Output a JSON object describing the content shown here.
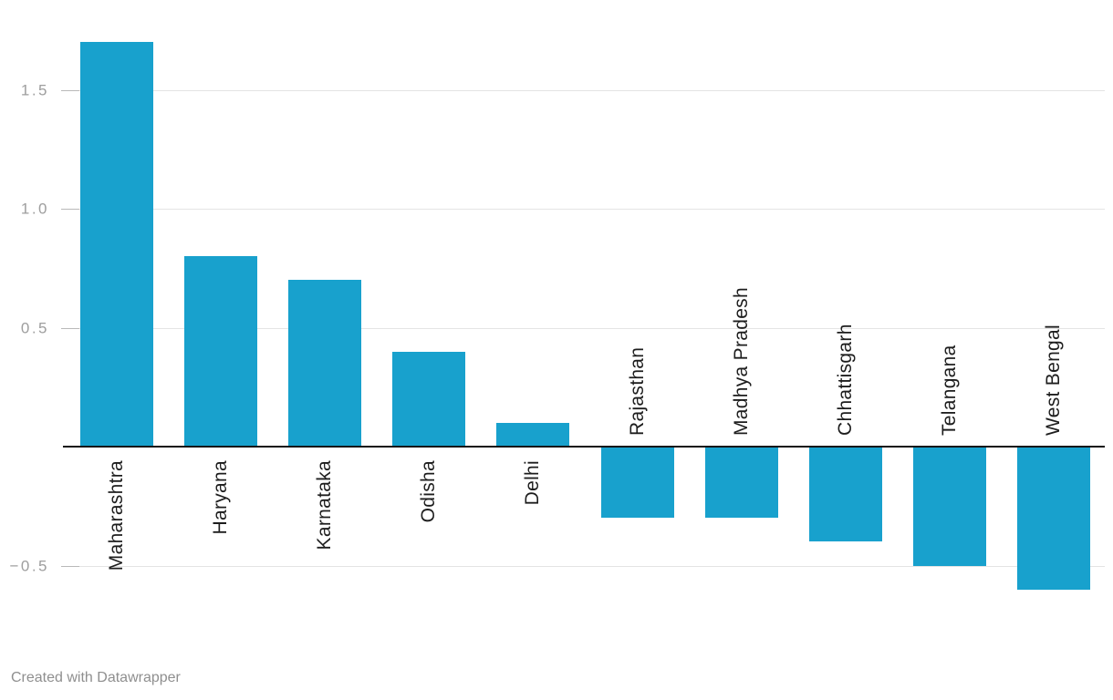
{
  "chart_data": {
    "type": "bar",
    "title": "",
    "xlabel": "",
    "ylabel": "",
    "categories": [
      "Maharashtra",
      "Haryana",
      "Karnataka",
      "Odisha",
      "Delhi",
      "Rajasthan",
      "Madhya Pradesh",
      "Chhattisgarh",
      "Telangana",
      "West Bengal"
    ],
    "values": [
      1.7,
      0.8,
      0.7,
      0.4,
      0.1,
      -0.3,
      -0.3,
      -0.4,
      -0.5,
      -0.6
    ],
    "ylim": [
      -0.7,
      1.8
    ],
    "grid": true,
    "baseline_value": 0,
    "yticks": [
      {
        "value": 1.5,
        "label": "1.5"
      },
      {
        "value": 1.0,
        "label": "1.0"
      },
      {
        "value": 0.5,
        "label": "0.5"
      },
      {
        "value": -0.5,
        "label": "−0.5"
      }
    ],
    "legend": null
  },
  "colors": {
    "bar": "#18a1cd",
    "baseline": "#141414",
    "gridline": "#e4e4e4",
    "tick_dash": "#b9b9b9",
    "ytick_text": "#9e9e9e",
    "xlabel_text": "#1d1d1d",
    "attribution_text": "#8f8f8f",
    "background": "#ffffff"
  },
  "footer": {
    "attribution": "Created with Datawrapper"
  }
}
